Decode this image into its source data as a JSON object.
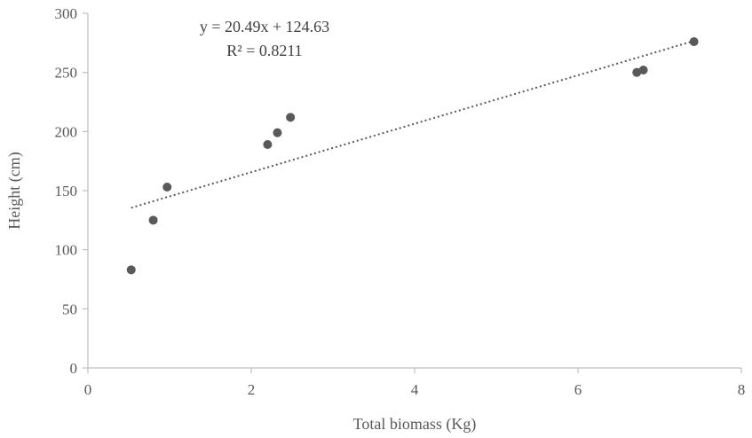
{
  "chart_data": {
    "type": "scatter",
    "xlabel": "Total biomass (Kg)",
    "ylabel": "Height (cm)",
    "xlim": [
      0,
      8
    ],
    "ylim": [
      0,
      300
    ],
    "xticks": [
      0,
      2,
      4,
      6,
      8
    ],
    "yticks": [
      0,
      50,
      100,
      150,
      200,
      250,
      300
    ],
    "grid": false,
    "series": [
      {
        "points": [
          {
            "x": 0.53,
            "y": 83
          },
          {
            "x": 0.8,
            "y": 125
          },
          {
            "x": 0.97,
            "y": 153
          },
          {
            "x": 2.2,
            "y": 189
          },
          {
            "x": 2.32,
            "y": 199
          },
          {
            "x": 2.48,
            "y": 212
          },
          {
            "x": 6.72,
            "y": 250
          },
          {
            "x": 6.8,
            "y": 252
          },
          {
            "x": 7.42,
            "y": 276
          }
        ],
        "color": "#595959"
      }
    ],
    "trendline": {
      "type": "linear",
      "slope": 20.49,
      "intercept": 124.63,
      "x_range": [
        0.53,
        7.42
      ],
      "style": "dotted",
      "equation_label": "y = 20.49x + 124.63",
      "r2_label": "R² = 0.8211"
    }
  }
}
